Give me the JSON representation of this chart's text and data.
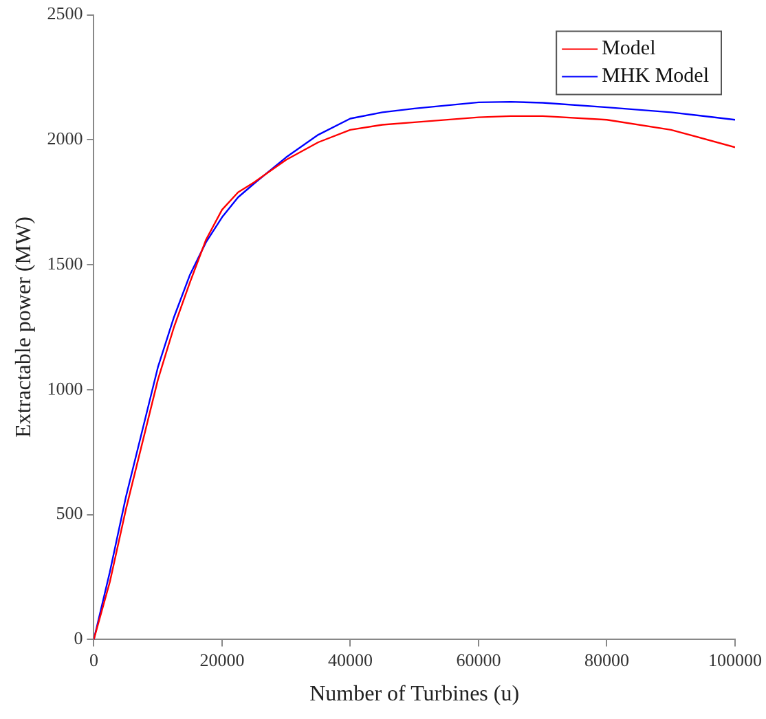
{
  "chart_data": {
    "type": "line",
    "xlabel": "Number of Turbines (u)",
    "ylabel": "Extractable power (MW)",
    "x": [
      0,
      2500,
      5000,
      7500,
      10000,
      12500,
      15000,
      17500,
      20000,
      22500,
      25000,
      30000,
      35000,
      40000,
      45000,
      50000,
      60000,
      65000,
      70000,
      80000,
      90000,
      100000
    ],
    "series": [
      {
        "name": "Model",
        "color": "#ff0000",
        "values": [
          0,
          230,
          520,
          780,
          1040,
          1250,
          1430,
          1600,
          1720,
          1790,
          1830,
          1920,
          1990,
          2040,
          2060,
          2070,
          2090,
          2095,
          2095,
          2080,
          2040,
          1970
        ]
      },
      {
        "name": "MHK Model",
        "color": "#0000ff",
        "values": [
          0,
          270,
          570,
          830,
          1090,
          1290,
          1460,
          1590,
          1690,
          1770,
          1825,
          1930,
          2020,
          2085,
          2110,
          2125,
          2150,
          2152,
          2148,
          2130,
          2110,
          2080
        ]
      }
    ],
    "xlim": [
      0,
      100000
    ],
    "xticks": [
      0,
      20000,
      40000,
      60000,
      80000,
      100000
    ],
    "ylim": [
      0,
      2500
    ],
    "yticks": [
      0,
      500,
      1000,
      1500,
      2000,
      2500
    ],
    "grid": false,
    "legend": "top right",
    "marker": "none",
    "line_style": "solid"
  }
}
